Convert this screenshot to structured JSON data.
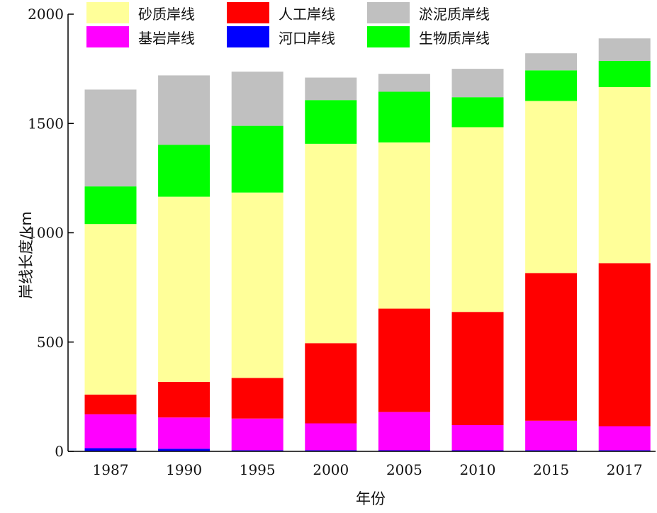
{
  "chart_data": {
    "type": "bar",
    "stacked": true,
    "categories": [
      "1987",
      "1990",
      "1995",
      "2000",
      "2005",
      "2010",
      "2015",
      "2017"
    ],
    "series": [
      {
        "name": "河口岸线",
        "color": "#0000ff",
        "values": [
          15,
          12,
          5,
          5,
          5,
          5,
          5,
          5
        ]
      },
      {
        "name": "基岩岸线",
        "color": "#ff00ff",
        "values": [
          155,
          143,
          145,
          123,
          175,
          115,
          135,
          110
        ]
      },
      {
        "name": "人工岸线",
        "color": "#ff0000",
        "values": [
          90,
          163,
          186,
          367,
          473,
          518,
          676,
          746
        ]
      },
      {
        "name": "砂质岸线",
        "color": "#ffff99",
        "values": [
          780,
          847,
          848,
          912,
          760,
          845,
          787,
          805
        ]
      },
      {
        "name": "生物质岸线",
        "color": "#00ff00",
        "values": [
          172,
          237,
          305,
          200,
          232,
          137,
          140,
          120
        ]
      },
      {
        "name": "淤泥质岸线",
        "color": "#c0c0c0",
        "values": [
          443,
          318,
          248,
          103,
          82,
          130,
          78,
          103
        ]
      }
    ],
    "xlabel": "年份",
    "ylabel": "岸线长度/km",
    "ylim": [
      0,
      2000
    ],
    "yticks": [
      "0",
      "500",
      "1000",
      "1500",
      "2000"
    ],
    "grid": false,
    "legend_position": "top",
    "legend_order": [
      "砂质岸线",
      "人工岸线",
      "淤泥质岸线",
      "基岩岸线",
      "河口岸线",
      "生物质岸线"
    ]
  }
}
